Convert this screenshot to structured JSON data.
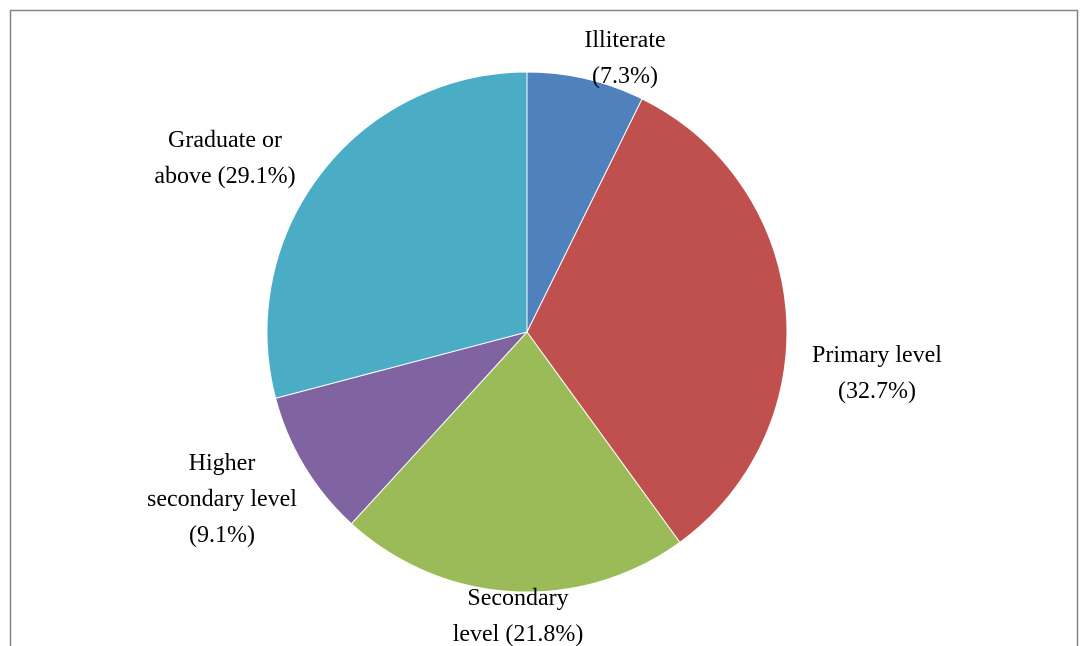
{
  "chart_data": {
    "type": "pie",
    "categories": [
      "Illiterate",
      "Primary level",
      "Secondary level",
      "Higher secondary level",
      "Graduate or above"
    ],
    "values": [
      7.3,
      32.7,
      21.8,
      9.1,
      29.1
    ],
    "value_labels": [
      "(7.3%)",
      "(32.7%)",
      "(21.8%)",
      "(9.1%)",
      "(29.1%)"
    ],
    "colors": [
      "#4f81bd",
      "#c0504d",
      "#9bbb59",
      "#8064a2",
      "#4bacc6"
    ]
  }
}
